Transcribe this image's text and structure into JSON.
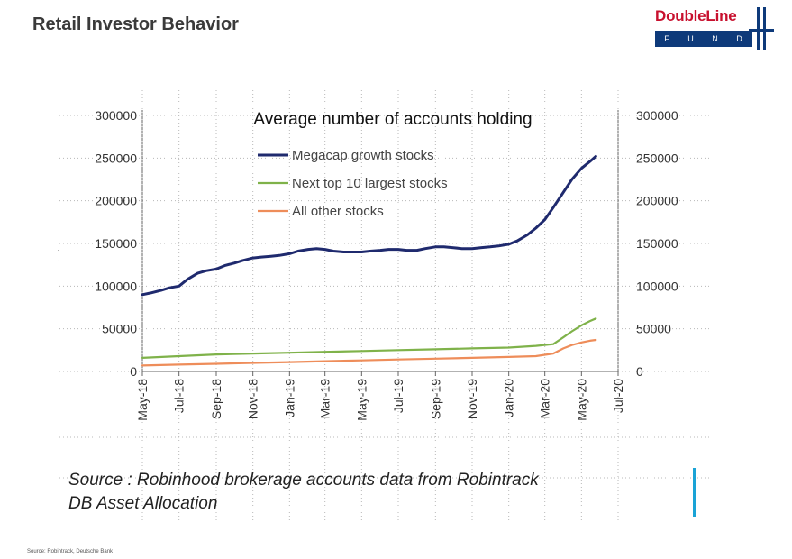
{
  "slide": {
    "title": "Retail Investor Behavior",
    "footer_source": "Source: Robintrack, Deutsche Bank"
  },
  "logo": {
    "name": "DoubleLine",
    "subtitle": "F U N D S",
    "colors": {
      "red": "#c8102e",
      "navy": "#0e3a7a"
    }
  },
  "source_note": {
    "line1": "Source : Robinhood brokerage accounts data from Robintrack",
    "line2": "DB Asset Allocation"
  },
  "chart_data": {
    "type": "line",
    "title": "Average number of accounts holding",
    "legend_position": "top-center",
    "grid": "dotted",
    "y_axis": {
      "range": [
        0,
        300000
      ],
      "ticks": [
        0,
        50000,
        100000,
        150000,
        200000,
        250000,
        300000
      ],
      "mirrored_right": true
    },
    "x_axis": {
      "range": [
        "2018-05-01",
        "2020-07-01"
      ],
      "tick_labels": [
        "May-18",
        "Jul-18",
        "Sep-18",
        "Nov-18",
        "Jan-19",
        "Mar-19",
        "May-19",
        "Jul-19",
        "Sep-19",
        "Nov-19",
        "Jan-20",
        "Mar-20",
        "May-20",
        "Jul-20"
      ]
    },
    "series": [
      {
        "name": "Megacap growth stocks",
        "color": "#1f2a6e",
        "x": [
          "2018-05-01",
          "2018-05-15",
          "2018-06-01",
          "2018-06-15",
          "2018-07-01",
          "2018-07-15",
          "2018-08-01",
          "2018-08-15",
          "2018-09-01",
          "2018-09-15",
          "2018-10-01",
          "2018-10-15",
          "2018-11-01",
          "2018-11-15",
          "2018-12-01",
          "2018-12-15",
          "2019-01-01",
          "2019-01-15",
          "2019-02-01",
          "2019-02-15",
          "2019-03-01",
          "2019-03-15",
          "2019-04-01",
          "2019-04-15",
          "2019-05-01",
          "2019-05-15",
          "2019-06-01",
          "2019-06-15",
          "2019-07-01",
          "2019-07-15",
          "2019-08-01",
          "2019-08-15",
          "2019-09-01",
          "2019-09-15",
          "2019-10-01",
          "2019-10-15",
          "2019-11-01",
          "2019-11-15",
          "2019-12-01",
          "2019-12-15",
          "2020-01-01",
          "2020-01-15",
          "2020-02-01",
          "2020-02-15",
          "2020-03-01",
          "2020-03-15",
          "2020-04-01",
          "2020-04-15",
          "2020-05-01",
          "2020-05-15",
          "2020-05-25"
        ],
        "values": [
          90000,
          92000,
          95000,
          98000,
          100000,
          108000,
          115000,
          118000,
          120000,
          124000,
          127000,
          130000,
          133000,
          134000,
          135000,
          136000,
          138000,
          141000,
          143000,
          144000,
          143000,
          141000,
          140000,
          140000,
          140000,
          141000,
          142000,
          143000,
          143000,
          142000,
          142000,
          144000,
          146000,
          146000,
          145000,
          144000,
          144000,
          145000,
          146000,
          147000,
          149000,
          153000,
          160000,
          168000,
          178000,
          192000,
          210000,
          225000,
          238000,
          246000,
          252000
        ]
      },
      {
        "name": "Next top 10 largest stocks",
        "color": "#7fb24a",
        "x": [
          "2018-05-01",
          "2018-07-01",
          "2018-09-01",
          "2018-11-01",
          "2019-01-01",
          "2019-03-01",
          "2019-05-01",
          "2019-07-01",
          "2019-09-01",
          "2019-11-01",
          "2020-01-01",
          "2020-02-15",
          "2020-03-15",
          "2020-04-01",
          "2020-04-15",
          "2020-05-01",
          "2020-05-15",
          "2020-05-25"
        ],
        "values": [
          16000,
          18000,
          20000,
          21000,
          22000,
          23000,
          24000,
          25000,
          26000,
          27000,
          28000,
          30000,
          32000,
          40000,
          47000,
          54000,
          59000,
          62000
        ]
      },
      {
        "name": "All other stocks",
        "color": "#ee8d5a",
        "x": [
          "2018-05-01",
          "2018-07-01",
          "2018-09-01",
          "2018-11-01",
          "2019-01-01",
          "2019-03-01",
          "2019-05-01",
          "2019-07-01",
          "2019-09-01",
          "2019-11-01",
          "2020-01-01",
          "2020-02-15",
          "2020-03-15",
          "2020-04-01",
          "2020-04-15",
          "2020-05-01",
          "2020-05-15",
          "2020-05-25"
        ],
        "values": [
          7000,
          8000,
          9000,
          10000,
          11000,
          12000,
          13000,
          14000,
          15000,
          16000,
          17000,
          18000,
          21000,
          27000,
          31000,
          34000,
          36000,
          37000
        ]
      }
    ]
  }
}
